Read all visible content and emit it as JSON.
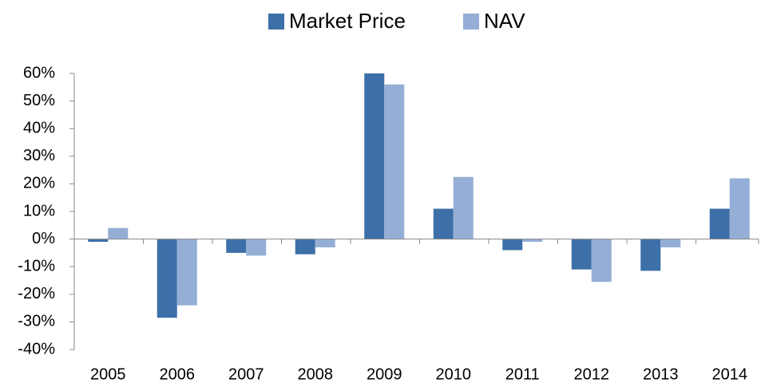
{
  "chart_data": {
    "type": "bar",
    "categories": [
      "2005",
      "2006",
      "2007",
      "2008",
      "2009",
      "2010",
      "2011",
      "2012",
      "2013",
      "2014"
    ],
    "series": [
      {
        "name": "Market Price",
        "color": "#3d6fa8",
        "values": [
          -1,
          -28.5,
          -5,
          -5.5,
          60,
          11,
          -4,
          -11,
          -11.5,
          11
        ]
      },
      {
        "name": "NAV",
        "color": "#94aed6",
        "values": [
          4,
          -24,
          -6,
          -3,
          56,
          22.5,
          -1,
          -15.5,
          -3,
          22
        ]
      }
    ],
    "ylim": [
      -40,
      60
    ],
    "yticks": [
      {
        "value": -40,
        "label": "-40%"
      },
      {
        "value": -30,
        "label": "-30%"
      },
      {
        "value": -20,
        "label": "-20%"
      },
      {
        "value": -10,
        "label": "-10%"
      },
      {
        "value": 0,
        "label": "0%"
      },
      {
        "value": 10,
        "label": "10%"
      },
      {
        "value": 20,
        "label": "20%"
      },
      {
        "value": 30,
        "label": "30%"
      },
      {
        "value": 40,
        "label": "40%"
      },
      {
        "value": 50,
        "label": "50%"
      },
      {
        "value": 60,
        "label": "60%"
      }
    ],
    "legend": "top"
  }
}
